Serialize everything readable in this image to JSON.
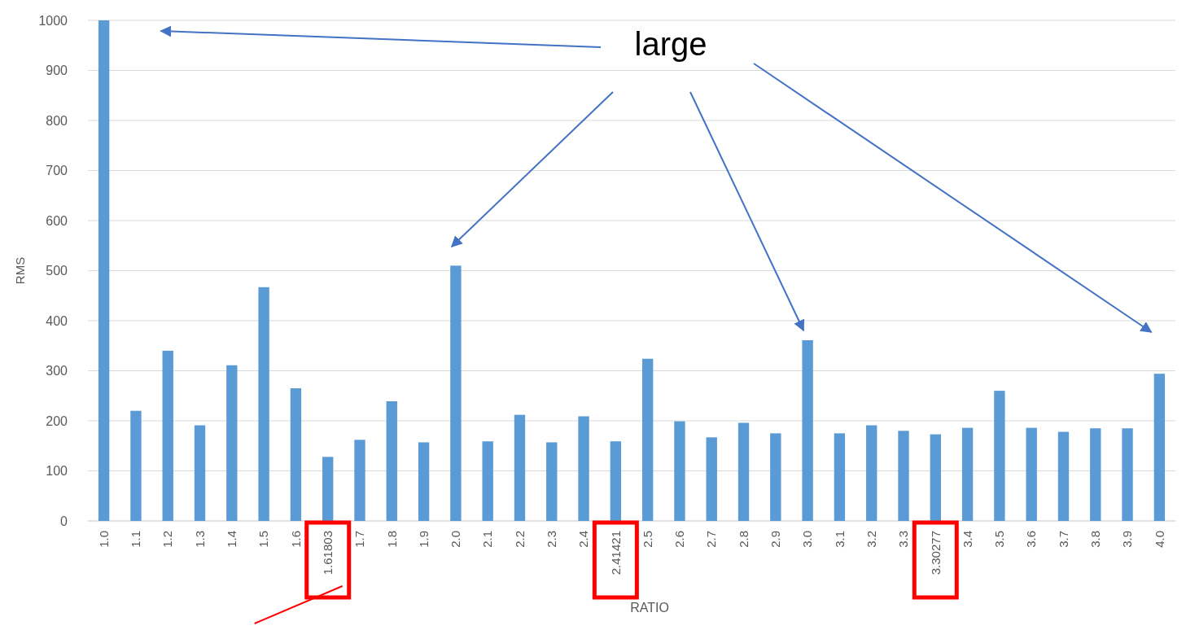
{
  "chart_data": {
    "type": "bar",
    "xlabel": "RATIO",
    "ylabel": "RMS",
    "annotations": [
      "large"
    ],
    "categories": [
      "1.0",
      "1.1",
      "1.2",
      "1.3",
      "1.4",
      "1.5",
      "1.6",
      "1.61803",
      "1.7",
      "1.8",
      "1.9",
      "2.0",
      "2.1",
      "2.2",
      "2.3",
      "2.4",
      "2.41421",
      "2.5",
      "2.6",
      "2.7",
      "2.8",
      "2.9",
      "3.0",
      "3.1",
      "3.2",
      "3.3",
      "3.30277",
      "3.4",
      "3.5",
      "3.6",
      "3.7",
      "3.8",
      "3.9",
      "4.0"
    ],
    "values": [
      1000,
      220,
      340,
      191,
      311,
      467,
      265,
      128,
      162,
      239,
      157,
      510,
      159,
      212,
      157,
      209,
      159,
      324,
      199,
      167,
      196,
      175,
      361,
      175,
      191,
      180,
      173,
      186,
      260,
      186,
      178,
      185,
      185,
      294
    ],
    "color": "#5b9bd5",
    "ylim": [
      0,
      1000
    ],
    "yticks": [
      0,
      100,
      200,
      300,
      400,
      500,
      600,
      700,
      800,
      900,
      1000
    ],
    "grid": "y"
  }
}
